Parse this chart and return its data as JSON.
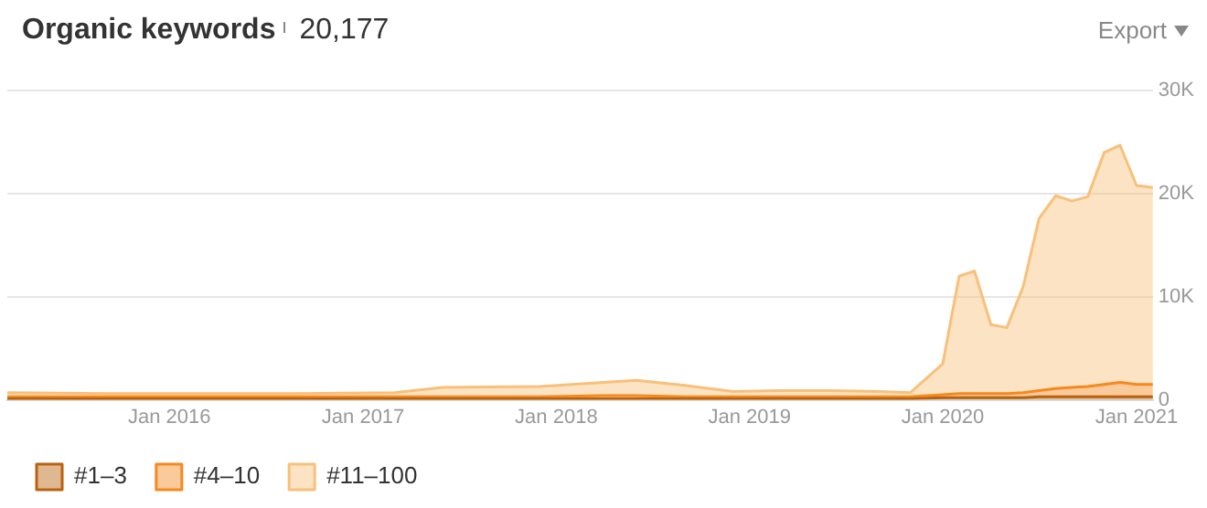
{
  "chart_data": {
    "type": "area",
    "title": "Organic keywords",
    "subtitle": "20,177",
    "annotations": [
      "Export"
    ],
    "stacked": true,
    "x": [
      "2015-03",
      "2015-09",
      "2016-03",
      "2016-09",
      "2017-03",
      "2017-06",
      "2017-12",
      "2018-04",
      "2018-06",
      "2018-09",
      "2018-12",
      "2019-03",
      "2019-06",
      "2019-09",
      "2019-11",
      "2020-01",
      "2020-02",
      "2020-03",
      "2020-04",
      "2020-05",
      "2020-06",
      "2020-07",
      "2020-08",
      "2020-09",
      "2020-10",
      "2020-11",
      "2020-12",
      "2021-01",
      "2021-02"
    ],
    "series": [
      {
        "name": "#1–3",
        "color": "#b8620e",
        "values": [
          100,
          100,
          100,
          100,
          100,
          100,
          100,
          100,
          100,
          100,
          100,
          100,
          100,
          100,
          100,
          200,
          200,
          200,
          200,
          200,
          200,
          300,
          300,
          300,
          300,
          300,
          300,
          300,
          300
        ]
      },
      {
        "name": "#4–10",
        "color": "#f5891f",
        "values": [
          200,
          200,
          200,
          200,
          200,
          200,
          200,
          300,
          300,
          200,
          200,
          200,
          200,
          200,
          200,
          300,
          400,
          400,
          400,
          400,
          500,
          600,
          800,
          900,
          1000,
          1200,
          1400,
          1200,
          1200
        ]
      },
      {
        "name": "#11–100",
        "color": "#f8c07a",
        "values": [
          400,
          300,
          300,
          300,
          400,
          900,
          1000,
          1300,
          1500,
          1100,
          500,
          600,
          600,
          500,
          400,
          3000,
          11400,
          11900,
          6700,
          6400,
          10300,
          16700,
          18700,
          18100,
          18400,
          22500,
          23000,
          19300,
          19100
        ]
      }
    ],
    "xlim": [
      "2015-03",
      "2021-02"
    ],
    "xticks": [
      {
        "value": "2016-01",
        "label": "Jan 2016"
      },
      {
        "value": "2017-01",
        "label": "Jan 2017"
      },
      {
        "value": "2018-01",
        "label": "Jan 2018"
      },
      {
        "value": "2019-01",
        "label": "Jan 2019"
      },
      {
        "value": "2020-01",
        "label": "Jan 2020"
      },
      {
        "value": "2021-01",
        "label": "Jan 2021"
      }
    ],
    "ylim": [
      0,
      30000
    ],
    "yticks": [
      0,
      {
        "value": 10000,
        "label": "10K"
      },
      {
        "value": 20000,
        "label": "20K"
      },
      {
        "value": 30000,
        "label": "30K"
      }
    ],
    "grid": "y",
    "legend": "bottom left",
    "marker": "none",
    "line_style": "solid"
  }
}
